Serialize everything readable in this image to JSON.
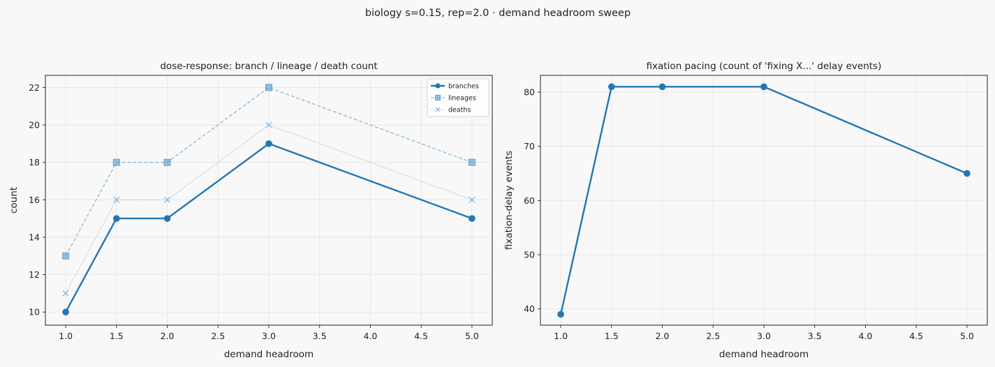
{
  "figure": {
    "suptitle": "biology s=0.15, rep=2.0 · demand headroom sweep"
  },
  "colors": {
    "branches": "#1f77b4",
    "lineages": "#5fa0d2",
    "deaths": "#7fb1d8",
    "grid": "#e4e4e4",
    "axes_bg": "#f8f8f8"
  },
  "chart_data": [
    {
      "type": "line",
      "title": "dose-response: branch / lineage / death count",
      "xlabel": "demand headroom",
      "ylabel": "count",
      "xlim": [
        0.8,
        5.2
      ],
      "ylim": [
        9.3,
        22.65
      ],
      "xticks": [
        1.0,
        1.5,
        2.0,
        2.5,
        3.0,
        3.5,
        4.0,
        4.5,
        5.0
      ],
      "xtick_labels": [
        "1.0",
        "1.5",
        "2.0",
        "2.5",
        "3.0",
        "3.5",
        "4.0",
        "4.5",
        "5.0"
      ],
      "yticks": [
        10,
        12,
        14,
        16,
        18,
        20,
        22
      ],
      "ytick_labels": [
        "10",
        "12",
        "14",
        "16",
        "18",
        "20",
        "22"
      ],
      "grid": true,
      "legend": "top-right",
      "series": [
        {
          "name": "branches",
          "marker": "circle",
          "style": "solid",
          "x": [
            1.0,
            1.5,
            2.0,
            3.0,
            5.0
          ],
          "values": [
            10,
            15,
            15,
            19,
            15
          ]
        },
        {
          "name": "lineages",
          "marker": "square",
          "style": "dashed",
          "x": [
            1.0,
            1.5,
            2.0,
            3.0,
            5.0
          ],
          "values": [
            13,
            18,
            18,
            22,
            18
          ]
        },
        {
          "name": "deaths",
          "marker": "x",
          "style": "dotted",
          "x": [
            1.0,
            1.5,
            2.0,
            3.0,
            5.0
          ],
          "values": [
            11,
            16,
            16,
            20,
            16
          ]
        }
      ]
    },
    {
      "type": "line",
      "title": "fixation pacing (count of 'fixing X...' delay events)",
      "xlabel": "demand headroom",
      "ylabel": "fixation-delay events",
      "xlim": [
        0.8,
        5.2
      ],
      "ylim": [
        37.0,
        83.1
      ],
      "xticks": [
        1.0,
        1.5,
        2.0,
        2.5,
        3.0,
        3.5,
        4.0,
        4.5,
        5.0
      ],
      "xtick_labels": [
        "1.0",
        "1.5",
        "2.0",
        "2.5",
        "3.0",
        "3.5",
        "4.0",
        "4.5",
        "5.0"
      ],
      "yticks": [
        40,
        50,
        60,
        70,
        80
      ],
      "ytick_labels": [
        "40",
        "50",
        "60",
        "70",
        "80"
      ],
      "grid": true,
      "series": [
        {
          "marker": "circle",
          "style": "solid",
          "x": [
            1.0,
            1.5,
            2.0,
            3.0,
            5.0
          ],
          "values": [
            39,
            81,
            81,
            81,
            65
          ]
        }
      ]
    }
  ]
}
